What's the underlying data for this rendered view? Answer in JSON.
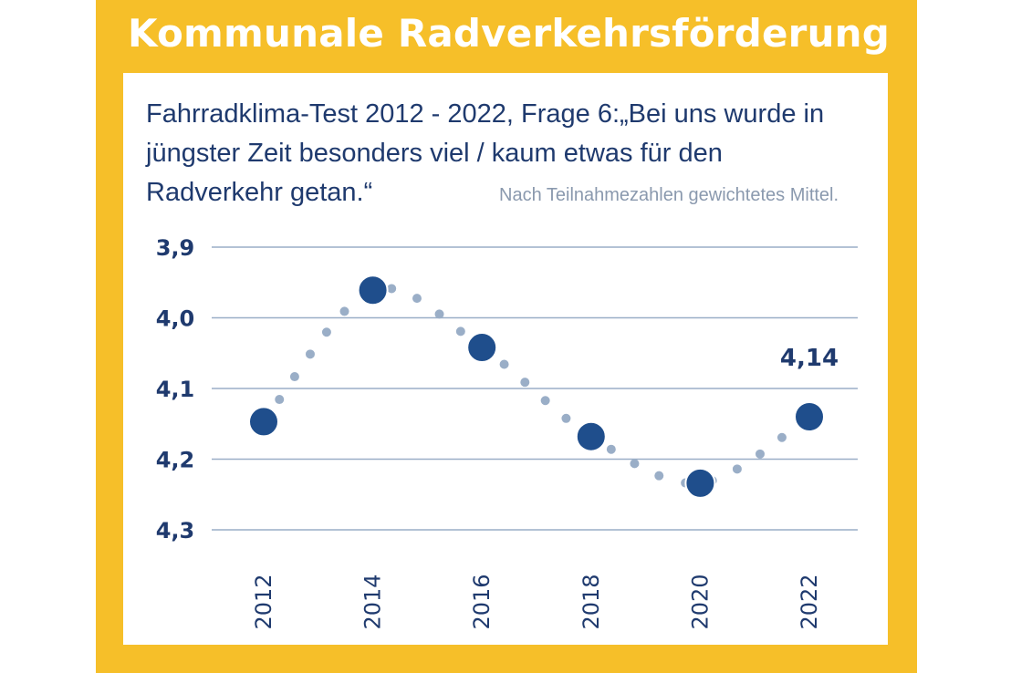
{
  "header": {
    "title": "Kommunale Radverkehrsförderung"
  },
  "question": "Fahrradklima-Test 2012 - 2022, Frage 6:„Bei uns wurde in jüngster Zeit besonders viel / kaum etwas für den Radverkehr getan.“",
  "note": "Nach Teilnahmezahlen gewichtetes Mittel.",
  "colors": {
    "frame": "#f6bf29",
    "point": "#1f4e8c",
    "dotted_line": "#9aaec7",
    "gridline": "#9aaec7",
    "text": "#1f3a6e"
  },
  "chart_data": {
    "type": "line",
    "title": "",
    "xlabel": "",
    "ylabel": "",
    "y_axis_inverted": true,
    "ylim": [
      3.9,
      4.3
    ],
    "yticks": [
      "3,9",
      "4,0",
      "4,1",
      "4,2",
      "4,3"
    ],
    "ytick_values": [
      3.9,
      4.0,
      4.1,
      4.2,
      4.3
    ],
    "grid": true,
    "x": [
      "2012",
      "2014",
      "2016",
      "2018",
      "2020",
      "2022"
    ],
    "series": [
      {
        "values": [
          4.147,
          3.961,
          4.042,
          4.168,
          4.234,
          4.14
        ],
        "line_style": "dotted"
      }
    ],
    "annotations": [
      {
        "x": "2022",
        "text": "4,14"
      }
    ]
  }
}
